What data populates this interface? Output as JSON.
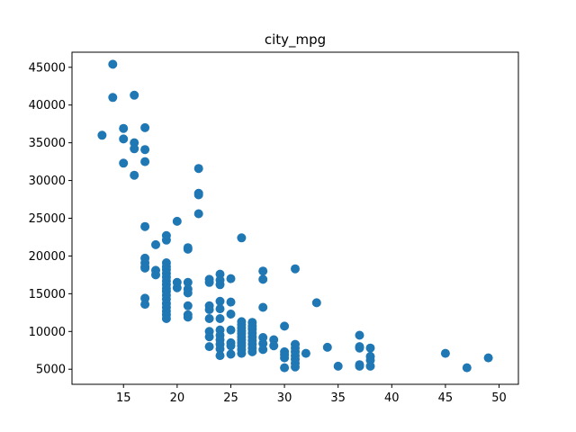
{
  "chart_data": {
    "type": "scatter",
    "title": "city_mpg",
    "xlabel": "",
    "ylabel": "",
    "xlim": [
      10.2,
      51.8
    ],
    "ylim": [
      3000,
      47000
    ],
    "x_ticks": [
      15,
      20,
      25,
      30,
      35,
      40,
      45,
      50
    ],
    "y_ticks": [
      5000,
      10000,
      15000,
      20000,
      25000,
      30000,
      35000,
      40000,
      45000
    ],
    "grid": false,
    "marker_color": "#1f77b4",
    "points": [
      [
        13,
        36000
      ],
      [
        14,
        45400
      ],
      [
        14,
        41000
      ],
      [
        16,
        41300
      ],
      [
        15,
        36900
      ],
      [
        15,
        35500
      ],
      [
        15,
        32300
      ],
      [
        16,
        35000
      ],
      [
        16,
        34200
      ],
      [
        16,
        30700
      ],
      [
        17,
        37000
      ],
      [
        17,
        34100
      ],
      [
        17,
        32500
      ],
      [
        22,
        31600
      ],
      [
        22,
        28300
      ],
      [
        22,
        28100
      ],
      [
        22,
        25600
      ],
      [
        17,
        23900
      ],
      [
        20,
        24600
      ],
      [
        26,
        22400
      ],
      [
        19,
        22700
      ],
      [
        19,
        22100
      ],
      [
        18,
        21500
      ],
      [
        21,
        21100
      ],
      [
        21,
        20900
      ],
      [
        17,
        19700
      ],
      [
        17,
        19100
      ],
      [
        17,
        18600
      ],
      [
        17,
        18400
      ],
      [
        18,
        18100
      ],
      [
        18,
        17500
      ],
      [
        19,
        19100
      ],
      [
        19,
        18600
      ],
      [
        19,
        18200
      ],
      [
        19,
        17700
      ],
      [
        19,
        17200
      ],
      [
        19,
        16700
      ],
      [
        19,
        16200
      ],
      [
        19,
        15700
      ],
      [
        19,
        15300
      ],
      [
        19,
        14800
      ],
      [
        19,
        14300
      ],
      [
        19,
        13700
      ],
      [
        19,
        13200
      ],
      [
        19,
        12700
      ],
      [
        19,
        12200
      ],
      [
        19,
        11700
      ],
      [
        20,
        16500
      ],
      [
        20,
        15800
      ],
      [
        21,
        16500
      ],
      [
        21,
        15600
      ],
      [
        21,
        15100
      ],
      [
        21,
        13400
      ],
      [
        21,
        12200
      ],
      [
        21,
        11900
      ],
      [
        17,
        14400
      ],
      [
        17,
        13600
      ],
      [
        23,
        16900
      ],
      [
        23,
        16500
      ],
      [
        23,
        13400
      ],
      [
        23,
        12900
      ],
      [
        23,
        11700
      ],
      [
        23,
        10000
      ],
      [
        23,
        9300
      ],
      [
        23,
        8000
      ],
      [
        24,
        17600
      ],
      [
        24,
        16800
      ],
      [
        24,
        16200
      ],
      [
        24,
        14000
      ],
      [
        24,
        13000
      ],
      [
        24,
        11700
      ],
      [
        24,
        10200
      ],
      [
        24,
        9500
      ],
      [
        24,
        8900
      ],
      [
        24,
        8300
      ],
      [
        24,
        7700
      ],
      [
        24,
        6800
      ],
      [
        25,
        17000
      ],
      [
        25,
        13900
      ],
      [
        25,
        12300
      ],
      [
        25,
        10200
      ],
      [
        25,
        8500
      ],
      [
        25,
        8100
      ],
      [
        25,
        7000
      ],
      [
        26,
        11300
      ],
      [
        26,
        10900
      ],
      [
        26,
        10500
      ],
      [
        26,
        10100
      ],
      [
        26,
        9700
      ],
      [
        26,
        9300
      ],
      [
        26,
        8900
      ],
      [
        26,
        8500
      ],
      [
        26,
        8100
      ],
      [
        26,
        7600
      ],
      [
        26,
        7100
      ],
      [
        27,
        11200
      ],
      [
        27,
        10700
      ],
      [
        27,
        10300
      ],
      [
        27,
        9800
      ],
      [
        27,
        9300
      ],
      [
        27,
        8800
      ],
      [
        27,
        8300
      ],
      [
        27,
        7800
      ],
      [
        27,
        7300
      ],
      [
        28,
        18000
      ],
      [
        28,
        16900
      ],
      [
        28,
        13200
      ],
      [
        28,
        9200
      ],
      [
        28,
        8400
      ],
      [
        28,
        7600
      ],
      [
        29,
        8900
      ],
      [
        29,
        8100
      ],
      [
        30,
        10700
      ],
      [
        30,
        7300
      ],
      [
        30,
        6900
      ],
      [
        30,
        6500
      ],
      [
        30,
        5200
      ],
      [
        31,
        18300
      ],
      [
        31,
        8300
      ],
      [
        31,
        7800
      ],
      [
        31,
        7300
      ],
      [
        31,
        6800
      ],
      [
        31,
        6300
      ],
      [
        31,
        5800
      ],
      [
        31,
        5300
      ],
      [
        32,
        7100
      ],
      [
        33,
        13800
      ],
      [
        34,
        7900
      ],
      [
        35,
        5400
      ],
      [
        37,
        9500
      ],
      [
        37,
        8000
      ],
      [
        37,
        7800
      ],
      [
        37,
        5600
      ],
      [
        37,
        5400
      ],
      [
        38,
        7800
      ],
      [
        38,
        6700
      ],
      [
        38,
        6200
      ],
      [
        38,
        5400
      ],
      [
        45,
        7100
      ],
      [
        47,
        5200
      ],
      [
        49,
        6500
      ]
    ]
  }
}
